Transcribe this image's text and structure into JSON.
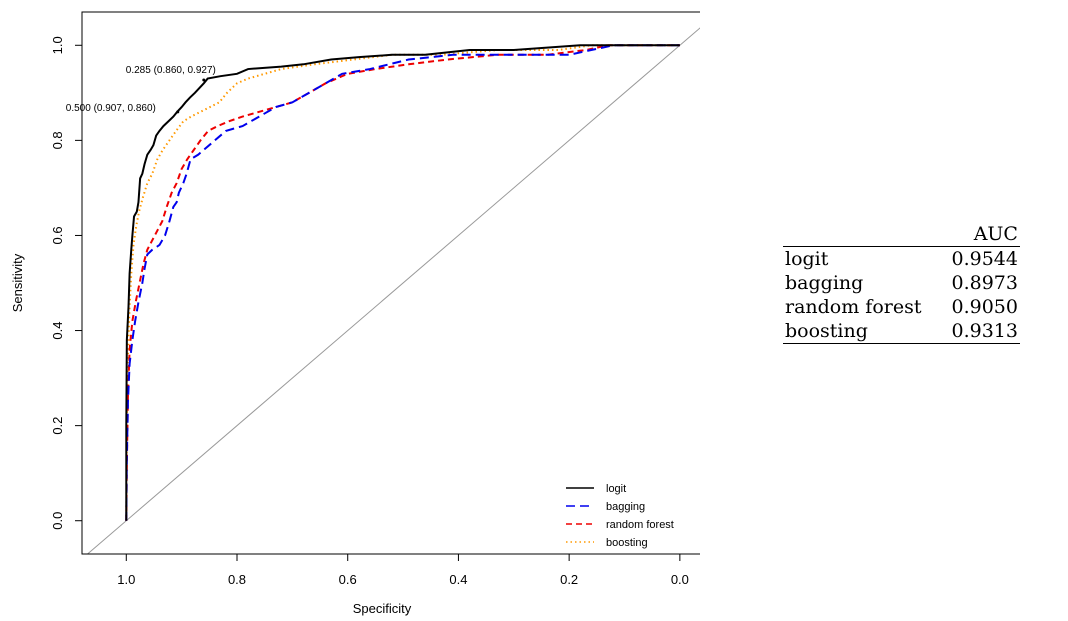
{
  "chart_data": {
    "type": "line",
    "xlabel": "Specificity",
    "ylabel": "Sensitivity",
    "xlim": [
      1.08,
      -0.04
    ],
    "ylim": [
      -0.07,
      1.07
    ],
    "x_reversed": true,
    "x_ticks": [
      "1.0",
      "0.8",
      "0.6",
      "0.4",
      "0.2",
      "0.0"
    ],
    "x_tick_values": [
      1.0,
      0.8,
      0.6,
      0.4,
      0.2,
      0.0
    ],
    "y_ticks": [
      "0.0",
      "0.2",
      "0.4",
      "0.6",
      "0.8",
      "1.0"
    ],
    "y_tick_values": [
      0.0,
      0.2,
      0.4,
      0.6,
      0.8,
      1.0
    ],
    "grid": false,
    "legend_position": "bottom-right",
    "diagonal_color": "#999999",
    "series": [
      {
        "name": "logit",
        "color": "#000000",
        "dash": "solid",
        "points": [
          [
            1.0,
            0.0
          ],
          [
            1.0,
            0.2
          ],
          [
            0.999,
            0.38
          ],
          [
            0.996,
            0.45
          ],
          [
            0.994,
            0.52
          ],
          [
            0.991,
            0.57
          ],
          [
            0.989,
            0.6
          ],
          [
            0.986,
            0.64
          ],
          [
            0.981,
            0.65
          ],
          [
            0.978,
            0.67
          ],
          [
            0.975,
            0.72
          ],
          [
            0.971,
            0.73
          ],
          [
            0.967,
            0.75
          ],
          [
            0.962,
            0.77
          ],
          [
            0.956,
            0.78
          ],
          [
            0.951,
            0.79
          ],
          [
            0.946,
            0.81
          ],
          [
            0.94,
            0.82
          ],
          [
            0.933,
            0.83
          ],
          [
            0.924,
            0.84
          ],
          [
            0.915,
            0.85
          ],
          [
            0.908,
            0.86
          ],
          [
            0.9,
            0.87
          ],
          [
            0.893,
            0.88
          ],
          [
            0.885,
            0.89
          ],
          [
            0.876,
            0.9
          ],
          [
            0.868,
            0.91
          ],
          [
            0.86,
            0.92
          ],
          [
            0.853,
            0.93
          ],
          [
            0.83,
            0.935
          ],
          [
            0.8,
            0.94
          ],
          [
            0.78,
            0.95
          ],
          [
            0.72,
            0.955
          ],
          [
            0.68,
            0.96
          ],
          [
            0.63,
            0.97
          ],
          [
            0.58,
            0.975
          ],
          [
            0.52,
            0.98
          ],
          [
            0.46,
            0.98
          ],
          [
            0.38,
            0.99
          ],
          [
            0.3,
            0.99
          ],
          [
            0.18,
            1.0
          ],
          [
            0.0,
            1.0
          ]
        ]
      },
      {
        "name": "bagging",
        "color": "#0000ee",
        "dash": "long-dash",
        "points": [
          [
            1.0,
            0.0
          ],
          [
            0.999,
            0.13
          ],
          [
            0.997,
            0.25
          ],
          [
            0.994,
            0.33
          ],
          [
            0.989,
            0.38
          ],
          [
            0.984,
            0.42
          ],
          [
            0.978,
            0.46
          ],
          [
            0.971,
            0.5
          ],
          [
            0.967,
            0.53
          ],
          [
            0.962,
            0.56
          ],
          [
            0.953,
            0.57
          ],
          [
            0.94,
            0.58
          ],
          [
            0.93,
            0.6
          ],
          [
            0.922,
            0.63
          ],
          [
            0.915,
            0.66
          ],
          [
            0.909,
            0.67
          ],
          [
            0.905,
            0.69
          ],
          [
            0.897,
            0.71
          ],
          [
            0.891,
            0.73
          ],
          [
            0.884,
            0.76
          ],
          [
            0.87,
            0.77
          ],
          [
            0.86,
            0.78
          ],
          [
            0.84,
            0.8
          ],
          [
            0.82,
            0.82
          ],
          [
            0.79,
            0.83
          ],
          [
            0.76,
            0.85
          ],
          [
            0.73,
            0.87
          ],
          [
            0.7,
            0.88
          ],
          [
            0.67,
            0.9
          ],
          [
            0.64,
            0.92
          ],
          [
            0.61,
            0.94
          ],
          [
            0.56,
            0.95
          ],
          [
            0.49,
            0.97
          ],
          [
            0.41,
            0.98
          ],
          [
            0.3,
            0.98
          ],
          [
            0.2,
            0.98
          ],
          [
            0.16,
            0.99
          ],
          [
            0.12,
            1.0
          ],
          [
            0.0,
            1.0
          ]
        ]
      },
      {
        "name": "random forest",
        "color": "#ee0000",
        "dash": "dash",
        "points": [
          [
            1.0,
            0.0
          ],
          [
            0.999,
            0.12
          ],
          [
            0.997,
            0.26
          ],
          [
            0.994,
            0.36
          ],
          [
            0.989,
            0.42
          ],
          [
            0.983,
            0.46
          ],
          [
            0.976,
            0.5
          ],
          [
            0.969,
            0.54
          ],
          [
            0.962,
            0.57
          ],
          [
            0.953,
            0.59
          ],
          [
            0.944,
            0.61
          ],
          [
            0.935,
            0.63
          ],
          [
            0.927,
            0.66
          ],
          [
            0.918,
            0.69
          ],
          [
            0.909,
            0.71
          ],
          [
            0.9,
            0.74
          ],
          [
            0.89,
            0.76
          ],
          [
            0.878,
            0.78
          ],
          [
            0.866,
            0.8
          ],
          [
            0.852,
            0.82
          ],
          [
            0.835,
            0.83
          ],
          [
            0.815,
            0.84
          ],
          [
            0.79,
            0.85
          ],
          [
            0.76,
            0.86
          ],
          [
            0.73,
            0.87
          ],
          [
            0.7,
            0.88
          ],
          [
            0.67,
            0.9
          ],
          [
            0.64,
            0.92
          ],
          [
            0.6,
            0.94
          ],
          [
            0.55,
            0.95
          ],
          [
            0.49,
            0.96
          ],
          [
            0.42,
            0.97
          ],
          [
            0.33,
            0.98
          ],
          [
            0.24,
            0.98
          ],
          [
            0.17,
            0.99
          ],
          [
            0.13,
            1.0
          ],
          [
            0.0,
            1.0
          ]
        ]
      },
      {
        "name": "boosting",
        "color": "#ff9900",
        "dash": "dot",
        "points": [
          [
            1.0,
            0.0
          ],
          [
            0.999,
            0.2
          ],
          [
            0.997,
            0.35
          ],
          [
            0.994,
            0.45
          ],
          [
            0.991,
            0.52
          ],
          [
            0.987,
            0.58
          ],
          [
            0.982,
            0.62
          ],
          [
            0.977,
            0.65
          ],
          [
            0.97,
            0.68
          ],
          [
            0.962,
            0.71
          ],
          [
            0.953,
            0.73
          ],
          [
            0.944,
            0.76
          ],
          [
            0.934,
            0.78
          ],
          [
            0.922,
            0.8
          ],
          [
            0.91,
            0.82
          ],
          [
            0.897,
            0.84
          ],
          [
            0.883,
            0.85
          ],
          [
            0.866,
            0.86
          ],
          [
            0.849,
            0.87
          ],
          [
            0.832,
            0.88
          ],
          [
            0.818,
            0.9
          ],
          [
            0.8,
            0.92
          ],
          [
            0.78,
            0.93
          ],
          [
            0.75,
            0.94
          ],
          [
            0.72,
            0.95
          ],
          [
            0.66,
            0.96
          ],
          [
            0.59,
            0.97
          ],
          [
            0.52,
            0.98
          ],
          [
            0.43,
            0.98
          ],
          [
            0.33,
            0.99
          ],
          [
            0.22,
            0.99
          ],
          [
            0.16,
            1.0
          ],
          [
            0.0,
            1.0
          ]
        ]
      }
    ],
    "annotations": [
      {
        "text": "0.285 (0.860, 0.927)",
        "x": 0.86,
        "y": 0.927
      },
      {
        "text": "0.500 (0.907, 0.860)",
        "x": 0.907,
        "y": 0.86
      }
    ]
  },
  "auc_table": {
    "header": [
      "",
      "AUC"
    ],
    "rows": [
      {
        "model": "logit",
        "auc": "0.9544"
      },
      {
        "model": "bagging",
        "auc": "0.8973"
      },
      {
        "model": "random forest",
        "auc": "0.9050"
      },
      {
        "model": "boosting",
        "auc": "0.9313"
      }
    ]
  }
}
